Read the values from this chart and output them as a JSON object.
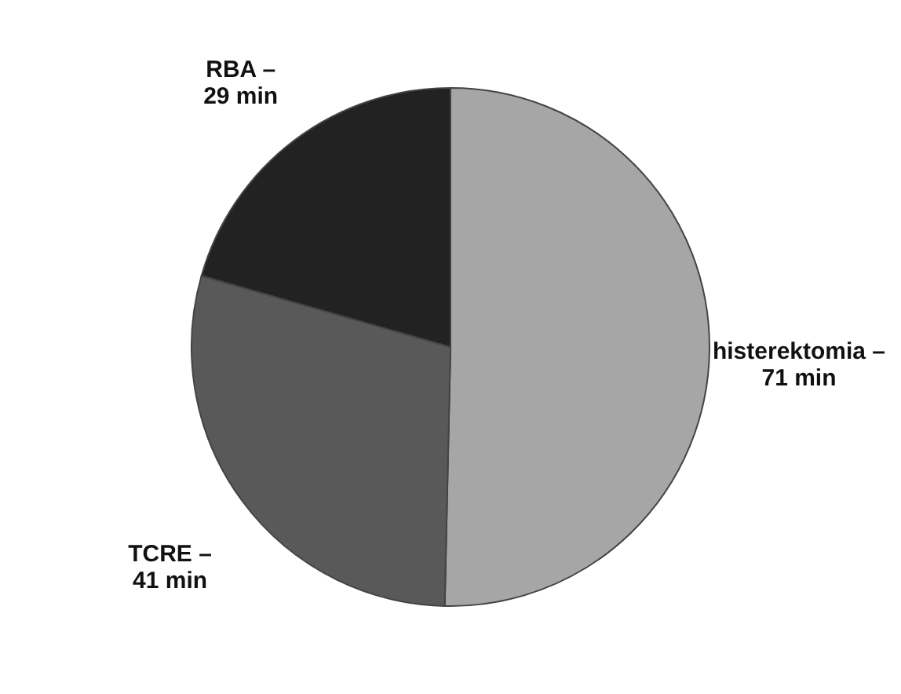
{
  "chart_data": {
    "type": "pie",
    "categories": [
      "histerektomia –",
      "TCRE –",
      "RBA –"
    ],
    "values": [
      71,
      41,
      29
    ],
    "value_labels": [
      "71 min",
      "41 min",
      "29 min"
    ],
    "colors": [
      "#a6a6a6",
      "#595959",
      "#222222"
    ]
  }
}
